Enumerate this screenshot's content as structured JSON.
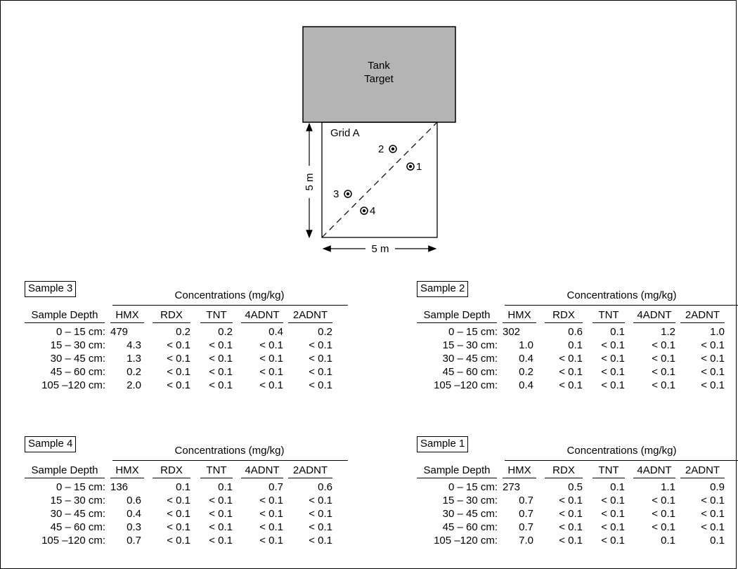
{
  "diagram": {
    "target_label_line1": "Tank",
    "target_label_line2": "Target",
    "grid_label": "Grid A",
    "dim_vertical": "5 m",
    "dim_horizontal": "5 m",
    "points": [
      {
        "label": "1"
      },
      {
        "label": "2"
      },
      {
        "label": "3"
      },
      {
        "label": "4"
      }
    ]
  },
  "table_header": {
    "concentrations": "Concentrations (mg/kg)",
    "columns": [
      "Sample Depth",
      "HMX",
      "RDX",
      "TNT",
      "4ADNT",
      "2ADNT"
    ]
  },
  "samples": [
    {
      "name": "Sample 3",
      "rows": [
        [
          "0 –  15 cm:",
          "479",
          "0.2",
          "0.2",
          "0.4",
          "0.2"
        ],
        [
          "15 –  30 cm:",
          "4.3",
          "< 0.1",
          "< 0.1",
          "< 0.1",
          "< 0.1"
        ],
        [
          "30 –  45 cm:",
          "1.3",
          "< 0.1",
          "< 0.1",
          "< 0.1",
          "< 0.1"
        ],
        [
          "45 –  60 cm:",
          "0.2",
          "< 0.1",
          "< 0.1",
          "< 0.1",
          "< 0.1"
        ],
        [
          "105 –120 cm:",
          "2.0",
          "< 0.1",
          "< 0.1",
          "< 0.1",
          "< 0.1"
        ]
      ]
    },
    {
      "name": "Sample 2",
      "rows": [
        [
          "0 –  15 cm:",
          "302",
          "0.6",
          "0.1",
          "1.2",
          "1.0"
        ],
        [
          "15 –  30 cm:",
          "1.0",
          "0.1",
          "< 0.1",
          "< 0.1",
          "< 0.1"
        ],
        [
          "30 –  45 cm:",
          "0.4",
          "< 0.1",
          "< 0.1",
          "< 0.1",
          "< 0.1"
        ],
        [
          "45 –  60 cm:",
          "0.2",
          "< 0.1",
          "< 0.1",
          "< 0.1",
          "< 0.1"
        ],
        [
          "105 –120 cm:",
          "0.4",
          "< 0.1",
          "< 0.1",
          "< 0.1",
          "< 0.1"
        ]
      ]
    },
    {
      "name": "Sample 4",
      "rows": [
        [
          "0 –  15 cm:",
          "136",
          "0.1",
          "0.1",
          "0.7",
          "0.6"
        ],
        [
          "15 –  30 cm:",
          "0.6",
          "< 0.1",
          "< 0.1",
          "< 0.1",
          "< 0.1"
        ],
        [
          "30 –  45 cm:",
          "0.4",
          "< 0.1",
          "< 0.1",
          "< 0.1",
          "< 0.1"
        ],
        [
          "45 –  60 cm:",
          "0.3",
          "< 0.1",
          "< 0.1",
          "< 0.1",
          "< 0.1"
        ],
        [
          "105 –120 cm:",
          "0.7",
          "< 0.1",
          "< 0.1",
          "< 0.1",
          "< 0.1"
        ]
      ]
    },
    {
      "name": "Sample 1",
      "rows": [
        [
          "0 –  15 cm:",
          "273",
          "0.5",
          "0.1",
          "1.1",
          "0.9"
        ],
        [
          "15 –  30 cm:",
          "0.7",
          "< 0.1",
          "< 0.1",
          "< 0.1",
          "< 0.1"
        ],
        [
          "30 –  45 cm:",
          "0.7",
          "< 0.1",
          "< 0.1",
          "< 0.1",
          "< 0.1"
        ],
        [
          "45 –  60 cm:",
          "0.7",
          "< 0.1",
          "< 0.1",
          "< 0.1",
          "< 0.1"
        ],
        [
          "105 –120 cm:",
          "7.0",
          "< 0.1",
          "< 0.1",
          "0.1",
          "0.1"
        ]
      ]
    }
  ],
  "colors": {
    "target_fill": "#b4b4b4",
    "line": "#000000",
    "background": "#ffffff"
  }
}
